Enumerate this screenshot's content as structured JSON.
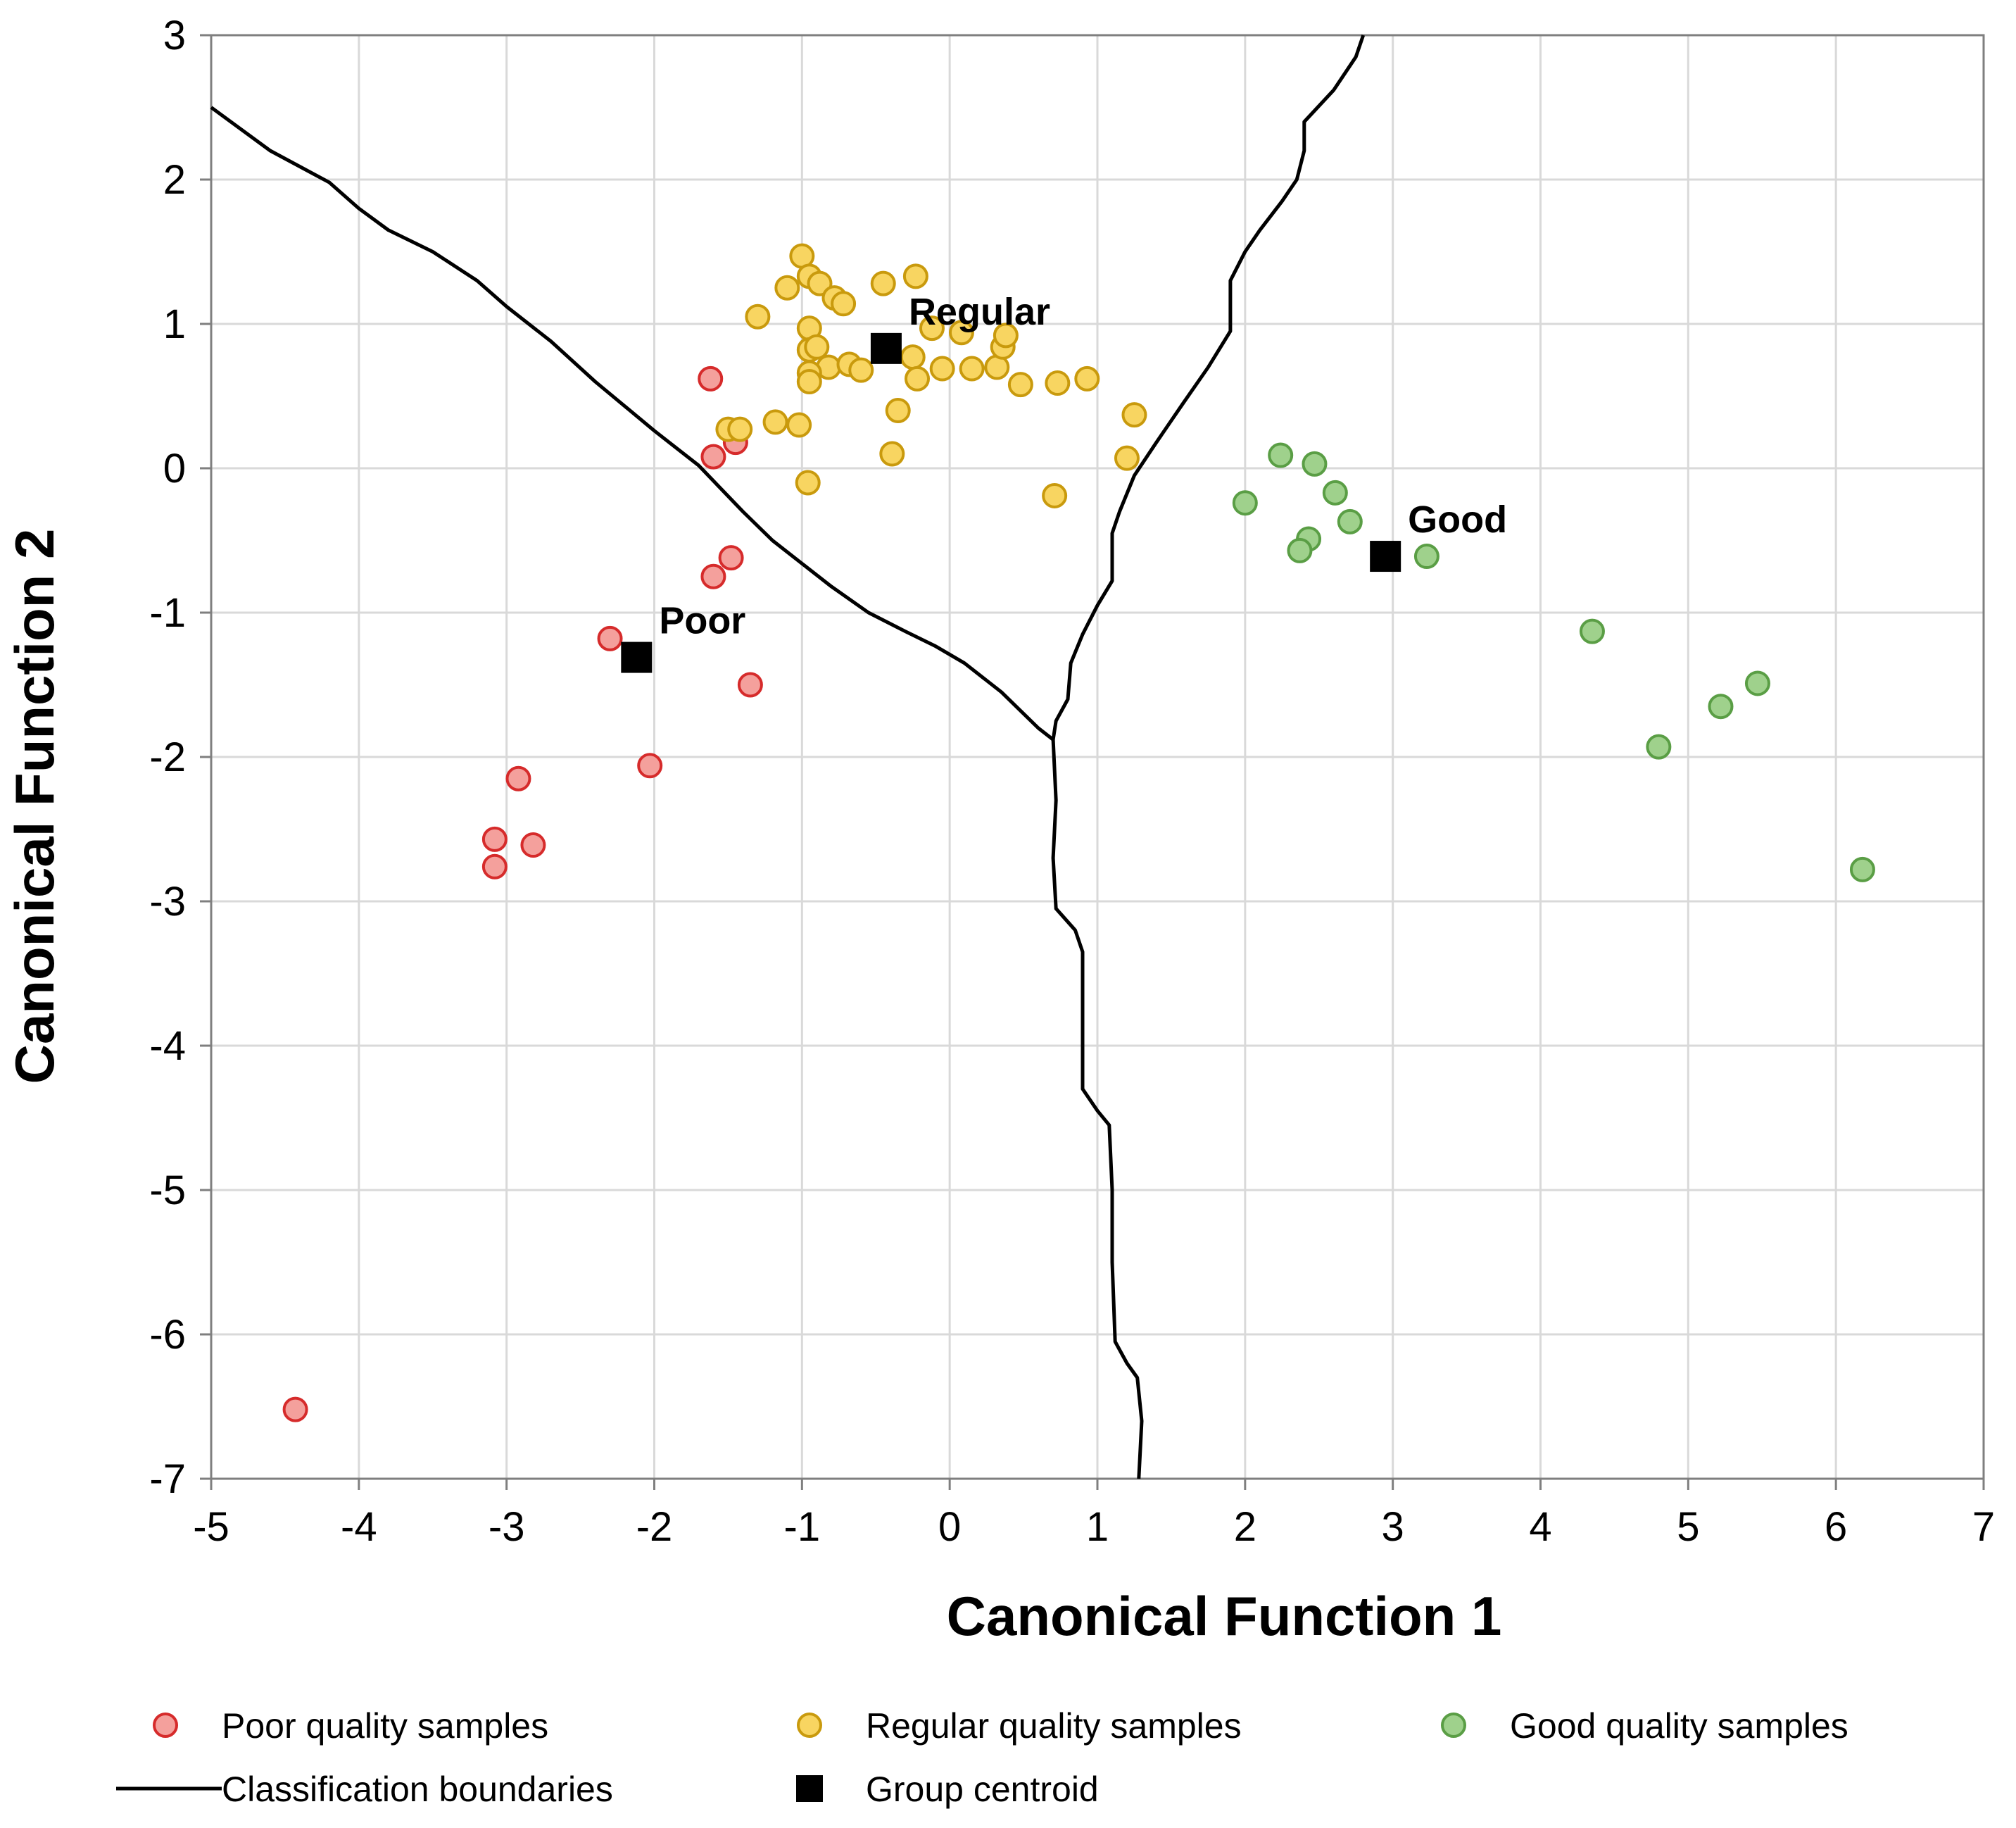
{
  "chart_data": {
    "type": "scatter",
    "xlabel": "Canonical Function 1",
    "ylabel": "Canonical Function 2",
    "xlim": [
      -5,
      7
    ],
    "ylim": [
      -7,
      3
    ],
    "xticks": [
      -5,
      -4,
      -3,
      -2,
      -1,
      0,
      1,
      2,
      3,
      4,
      5,
      6,
      7
    ],
    "yticks": [
      3,
      2,
      1,
      0,
      -1,
      -2,
      -3,
      -4,
      -5,
      -6,
      -7
    ],
    "grid": true,
    "series": [
      {
        "name": "Poor quality samples",
        "marker": "circle",
        "fill": "#f4a09c",
        "stroke": "#d62b2b",
        "points": [
          [
            -1.62,
            0.62
          ],
          [
            -1.6,
            0.08
          ],
          [
            -1.45,
            0.18
          ],
          [
            -1.48,
            -0.62
          ],
          [
            -1.6,
            -0.75
          ],
          [
            -2.3,
            -1.18
          ],
          [
            -1.35,
            -1.5
          ],
          [
            -2.03,
            -2.06
          ],
          [
            -2.92,
            -2.15
          ],
          [
            -3.08,
            -2.57
          ],
          [
            -2.82,
            -2.61
          ],
          [
            -3.08,
            -2.76
          ],
          [
            -4.43,
            -6.52
          ]
        ]
      },
      {
        "name": "Regular quality samples",
        "marker": "circle",
        "fill": "#f8d561",
        "stroke": "#c99a0d",
        "points": [
          [
            -1.0,
            1.47
          ],
          [
            -1.1,
            1.25
          ],
          [
            -0.95,
            1.33
          ],
          [
            -0.88,
            1.28
          ],
          [
            -0.78,
            1.18
          ],
          [
            -0.72,
            1.14
          ],
          [
            -0.45,
            1.28
          ],
          [
            -0.23,
            1.33
          ],
          [
            -1.3,
            1.05
          ],
          [
            -0.95,
            0.97
          ],
          [
            -0.95,
            0.82
          ],
          [
            -0.9,
            0.84
          ],
          [
            -0.82,
            0.7
          ],
          [
            -0.68,
            0.72
          ],
          [
            -0.6,
            0.68
          ],
          [
            -0.95,
            0.66
          ],
          [
            -0.95,
            0.6
          ],
          [
            -0.25,
            0.77
          ],
          [
            -0.22,
            0.62
          ],
          [
            -0.05,
            0.69
          ],
          [
            -0.12,
            0.97
          ],
          [
            0.08,
            0.94
          ],
          [
            0.15,
            0.69
          ],
          [
            0.32,
            0.7
          ],
          [
            0.36,
            0.84
          ],
          [
            0.38,
            0.92
          ],
          [
            0.48,
            0.58
          ],
          [
            0.73,
            0.59
          ],
          [
            0.93,
            0.62
          ],
          [
            1.25,
            0.37
          ],
          [
            1.2,
            0.07
          ],
          [
            -1.18,
            0.32
          ],
          [
            -1.02,
            0.3
          ],
          [
            -1.5,
            0.27
          ],
          [
            -1.42,
            0.27
          ],
          [
            -0.35,
            0.4
          ],
          [
            -0.39,
            0.1
          ],
          [
            -0.96,
            -0.1
          ],
          [
            0.71,
            -0.19
          ]
        ]
      },
      {
        "name": "Good quality samples",
        "marker": "circle",
        "fill": "#9fd18c",
        "stroke": "#5a9e45",
        "points": [
          [
            2.24,
            0.09
          ],
          [
            2.47,
            0.03
          ],
          [
            2.61,
            -0.17
          ],
          [
            2.0,
            -0.24
          ],
          [
            2.71,
            -0.37
          ],
          [
            2.43,
            -0.49
          ],
          [
            2.37,
            -0.57
          ],
          [
            3.23,
            -0.61
          ],
          [
            4.35,
            -1.13
          ],
          [
            4.8,
            -1.93
          ],
          [
            5.22,
            -1.65
          ],
          [
            5.47,
            -1.49
          ],
          [
            6.18,
            -2.78
          ]
        ]
      }
    ],
    "centroids": [
      {
        "label": "Poor",
        "x": -2.12,
        "y": -1.31
      },
      {
        "label": "Regular",
        "x": -0.43,
        "y": 0.83
      },
      {
        "label": "Good",
        "x": 2.95,
        "y": -0.61
      }
    ],
    "boundaries": [
      {
        "name": "Poor/Regular boundary",
        "points": [
          [
            -5.0,
            2.5
          ],
          [
            -4.6,
            2.2
          ],
          [
            -4.2,
            1.98
          ],
          [
            -4.0,
            1.8
          ],
          [
            -3.8,
            1.65
          ],
          [
            -3.5,
            1.5
          ],
          [
            -3.2,
            1.3
          ],
          [
            -3.0,
            1.12
          ],
          [
            -2.7,
            0.88
          ],
          [
            -2.4,
            0.6
          ],
          [
            -2.0,
            0.26
          ],
          [
            -1.7,
            0.02
          ],
          [
            -1.4,
            -0.3
          ],
          [
            -1.2,
            -0.5
          ],
          [
            -1.0,
            -0.66
          ],
          [
            -0.8,
            -0.82
          ],
          [
            -0.55,
            -1.0
          ],
          [
            -0.3,
            -1.13
          ],
          [
            -0.1,
            -1.23
          ],
          [
            0.1,
            -1.35
          ],
          [
            0.35,
            -1.55
          ],
          [
            0.6,
            -1.8
          ],
          [
            0.7,
            -1.88
          ]
        ]
      },
      {
        "name": "Poor/Good lower boundary",
        "points": [
          [
            0.7,
            -1.88
          ],
          [
            0.72,
            -2.3
          ],
          [
            0.7,
            -2.7
          ],
          [
            0.72,
            -3.05
          ],
          [
            0.85,
            -3.2
          ],
          [
            0.9,
            -3.35
          ],
          [
            0.9,
            -3.8
          ],
          [
            0.9,
            -4.3
          ],
          [
            1.0,
            -4.45
          ],
          [
            1.08,
            -4.55
          ],
          [
            1.1,
            -5.0
          ],
          [
            1.1,
            -5.5
          ],
          [
            1.12,
            -6.05
          ],
          [
            1.2,
            -6.2
          ],
          [
            1.27,
            -6.3
          ],
          [
            1.3,
            -6.6
          ],
          [
            1.28,
            -7.0
          ]
        ]
      },
      {
        "name": "Regular/Good boundary",
        "points": [
          [
            0.7,
            -1.88
          ],
          [
            0.72,
            -1.75
          ],
          [
            0.8,
            -1.6
          ],
          [
            0.82,
            -1.35
          ],
          [
            0.9,
            -1.15
          ],
          [
            0.95,
            -1.05
          ],
          [
            1.0,
            -0.95
          ],
          [
            1.1,
            -0.78
          ],
          [
            1.1,
            -0.6
          ],
          [
            1.1,
            -0.45
          ],
          [
            1.15,
            -0.3
          ],
          [
            1.25,
            -0.05
          ],
          [
            1.4,
            0.18
          ],
          [
            1.58,
            0.45
          ],
          [
            1.75,
            0.7
          ],
          [
            1.9,
            0.95
          ],
          [
            1.9,
            1.3
          ],
          [
            2.0,
            1.5
          ],
          [
            2.1,
            1.65
          ],
          [
            2.25,
            1.85
          ],
          [
            2.35,
            2.0
          ],
          [
            2.4,
            2.2
          ],
          [
            2.4,
            2.4
          ],
          [
            2.6,
            2.62
          ],
          [
            2.75,
            2.85
          ],
          [
            2.8,
            3.0
          ]
        ]
      }
    ],
    "legend": {
      "position": "bottom",
      "items": [
        {
          "label": "Poor quality samples",
          "symbol": "circle",
          "fill": "#f4a09c",
          "stroke": "#d62b2b"
        },
        {
          "label": "Regular quality samples",
          "symbol": "circle",
          "fill": "#f8d561",
          "stroke": "#c99a0d"
        },
        {
          "label": "Good quality samples",
          "symbol": "circle",
          "fill": "#9fd18c",
          "stroke": "#5a9e45"
        },
        {
          "label": "Classification boundaries",
          "symbol": "line",
          "stroke": "#000000"
        },
        {
          "label": "Group centroid",
          "symbol": "square",
          "fill": "#000000"
        }
      ]
    }
  }
}
